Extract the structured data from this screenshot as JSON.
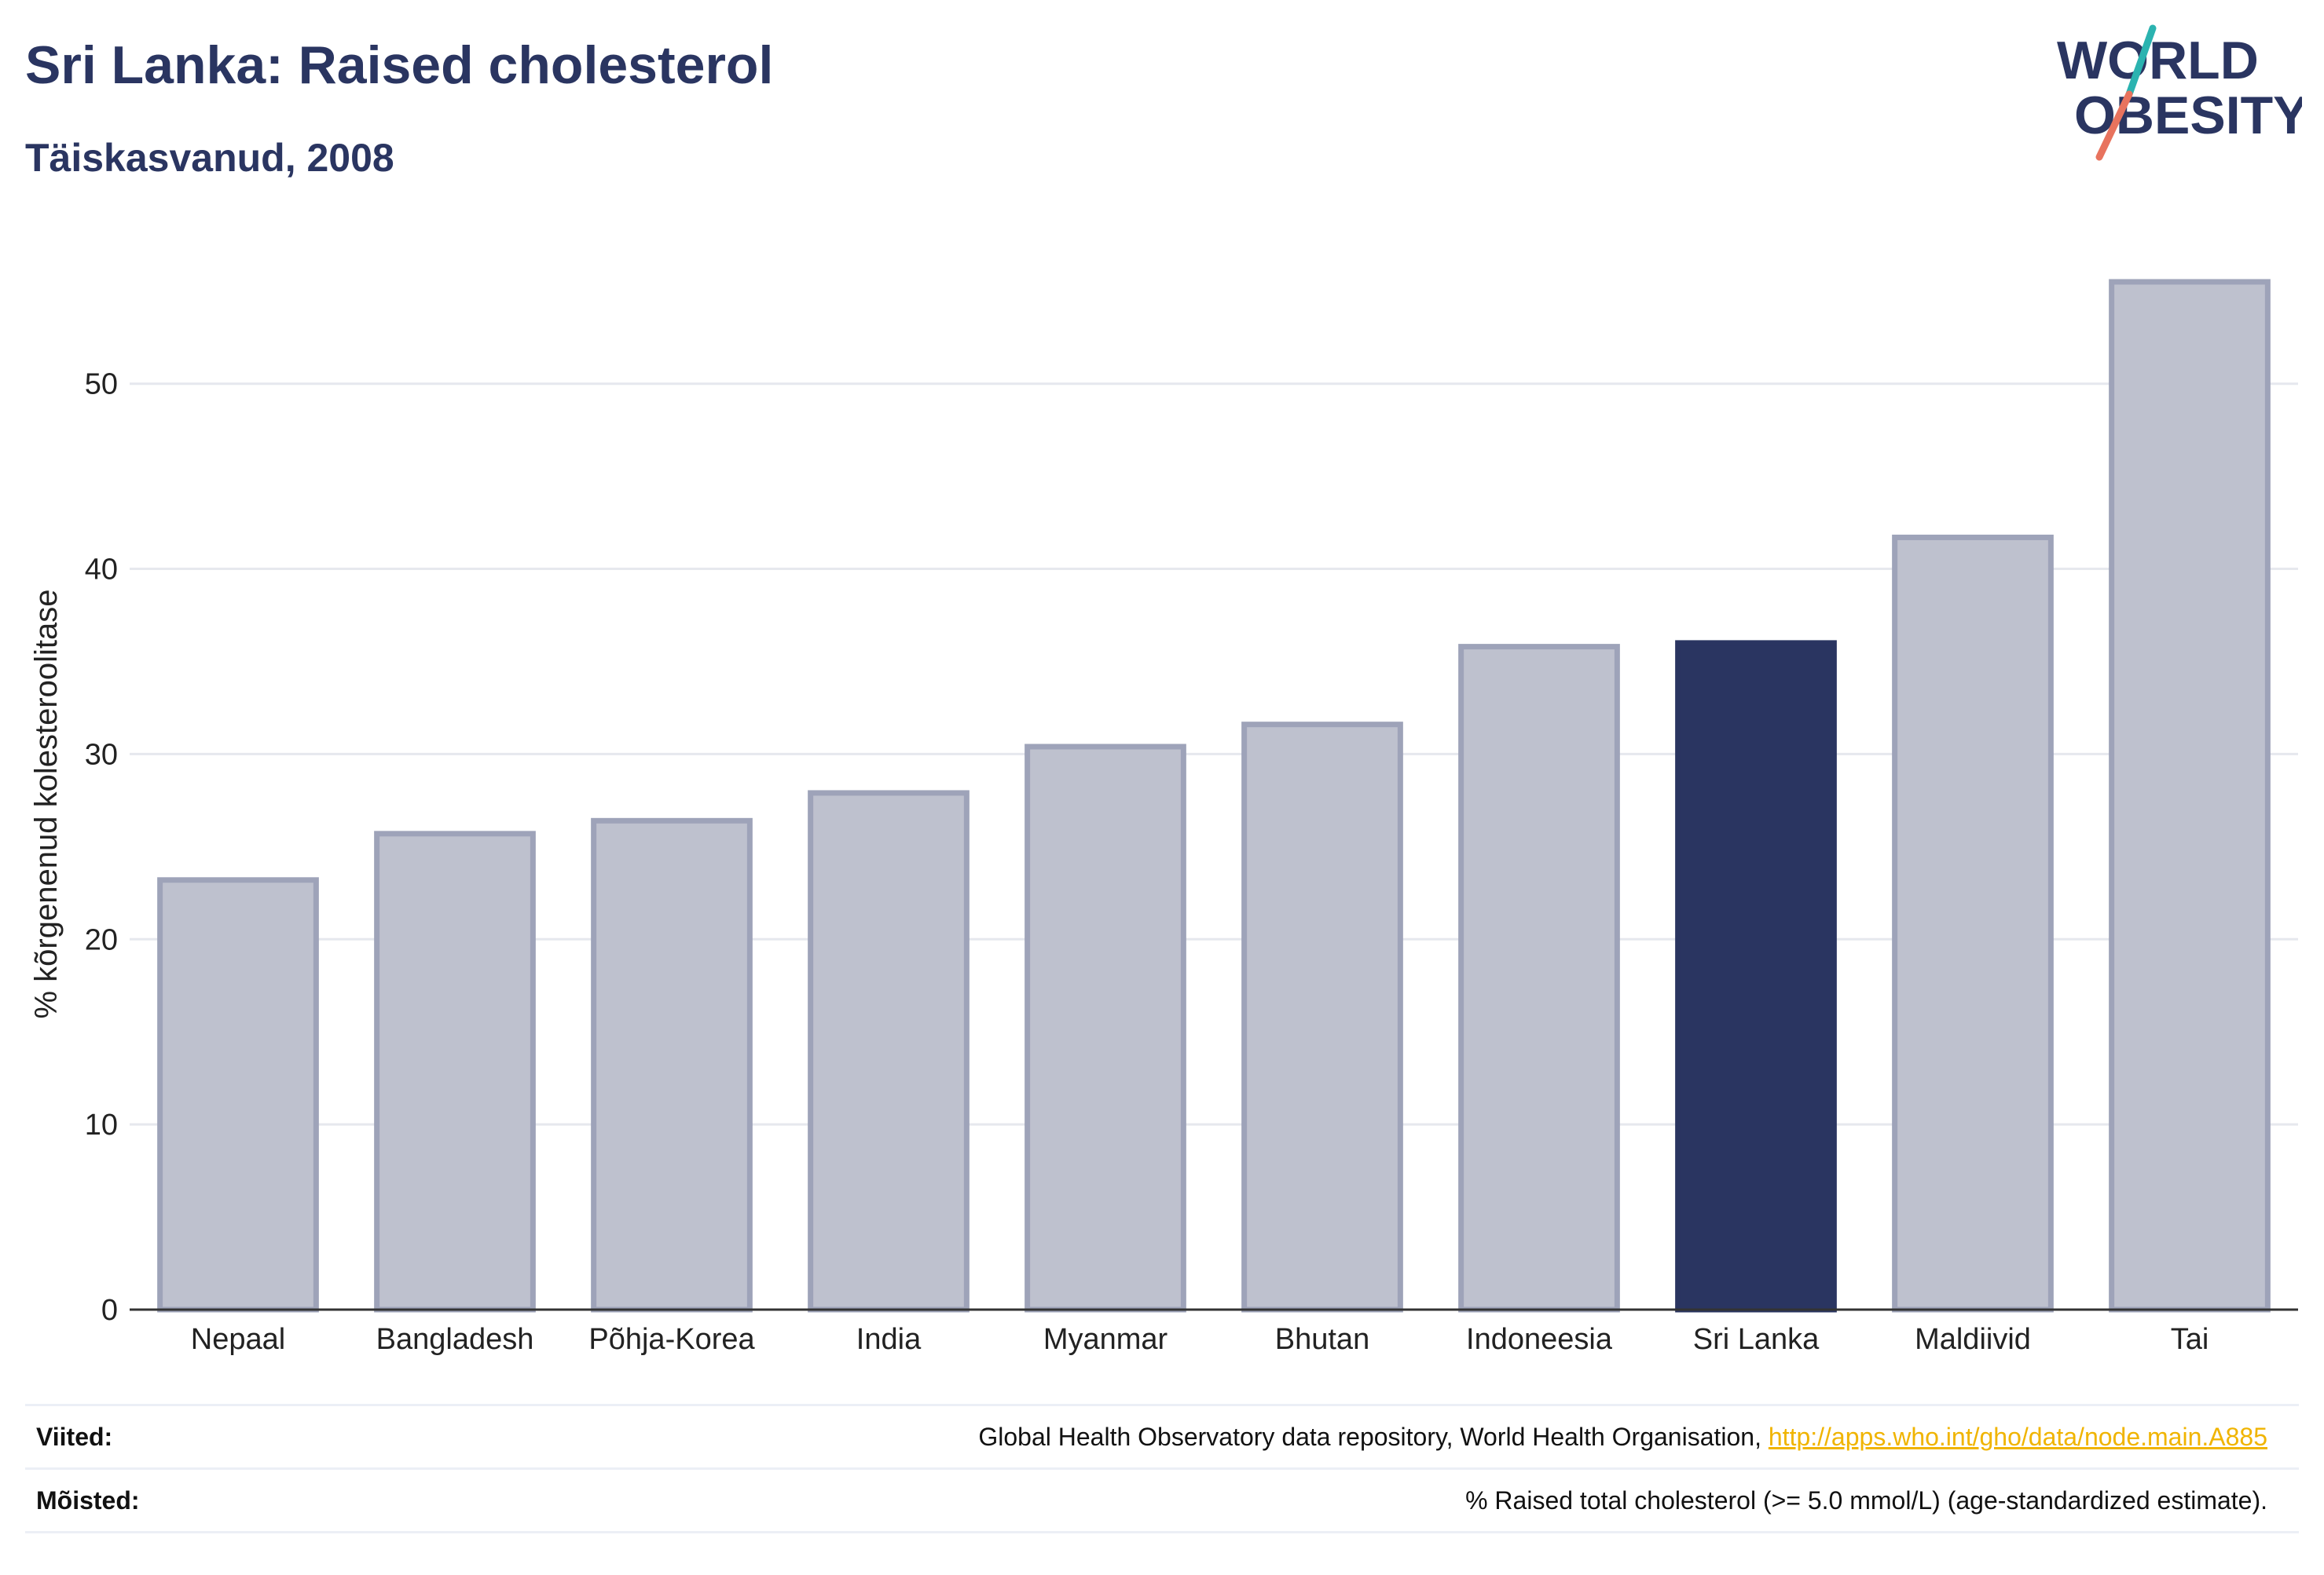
{
  "header": {
    "title": "Sri Lanka: Raised cholesterol",
    "subtitle": "Täiskasvanud, 2008"
  },
  "logo": {
    "line1": "WORLD",
    "line2": "OBESITY"
  },
  "colors": {
    "highlight": "#2a3561",
    "bar_fill": "#bec1ce",
    "bar_stroke": "#9ea3b9",
    "grid": "#e6e8ee",
    "logo_teal": "#2bb3b0",
    "logo_coral": "#e8735e"
  },
  "chart_data": {
    "type": "bar",
    "categories": [
      "Nepaal",
      "Bangladesh",
      "Põhja-Korea",
      "India",
      "Myanmar",
      "Bhutan",
      "Indoneesia",
      "Sri Lanka",
      "Maldiivid",
      "Tai"
    ],
    "values": [
      23.2,
      25.7,
      26.4,
      27.9,
      30.4,
      31.6,
      35.8,
      36.0,
      41.7,
      55.5
    ],
    "highlight_category": "Sri Lanka",
    "ylabel": "% kõrgenenud kolesteroolitase",
    "ylim": [
      0,
      58
    ],
    "yticks": [
      0,
      10,
      20,
      30,
      40,
      50
    ],
    "grid": true
  },
  "footer": {
    "references_label": "Viited:",
    "references_text": "Global Health Observatory data repository, World Health Organisation, ",
    "references_link": "http://apps.who.int/gho/data/node.main.A885",
    "definitions_label": "Mõisted:",
    "definitions_text": "% Raised total cholesterol (>= 5.0 mmol/L) (age-standardized estimate)."
  }
}
